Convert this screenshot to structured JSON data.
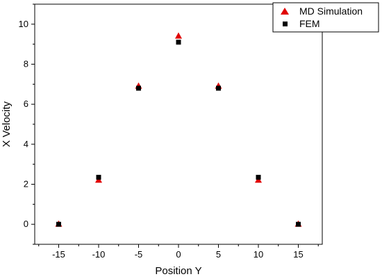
{
  "chart_data": {
    "type": "scatter",
    "xlabel": "Position Y",
    "ylabel": "X Velocity",
    "xlim": [
      -18,
      18
    ],
    "ylim": [
      -1.0,
      11.0
    ],
    "xticks": [
      -15,
      -10,
      -5,
      0,
      5,
      10,
      15
    ],
    "yticks": [
      0,
      2,
      4,
      6,
      8,
      10
    ],
    "grid": false,
    "legend_position": "top-right",
    "series": [
      {
        "name": "MD Simulation",
        "marker": "triangle",
        "color": "#e00000",
        "x": [
          -15,
          -10,
          -5,
          0,
          5,
          10,
          15
        ],
        "y": [
          0.0,
          2.2,
          6.9,
          9.4,
          6.9,
          2.2,
          0.0
        ]
      },
      {
        "name": "FEM",
        "marker": "square",
        "color": "#000000",
        "x": [
          -15,
          -10,
          -5,
          0,
          5,
          10,
          15
        ],
        "y": [
          0.0,
          2.35,
          6.8,
          9.1,
          6.8,
          2.35,
          0.0
        ]
      }
    ]
  }
}
